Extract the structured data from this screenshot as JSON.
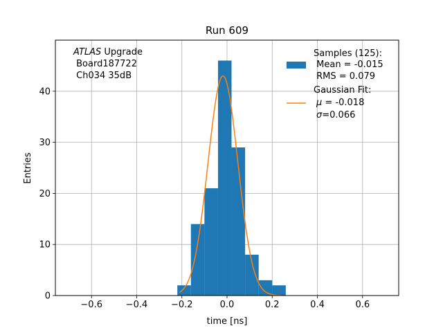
{
  "chart_data": {
    "type": "bar",
    "title": "Run 609",
    "xlabel": "time [ns]",
    "ylabel": "Entries",
    "xlim": [
      -0.76,
      0.76
    ],
    "ylim": [
      0,
      50
    ],
    "grid": true,
    "xticks": [
      -0.6,
      -0.4,
      -0.2,
      0.0,
      0.2,
      0.4,
      0.6
    ],
    "xtick_labels": [
      "−0.6",
      "−0.4",
      "−0.2",
      "0.0",
      "0.2",
      "0.4",
      "0.6"
    ],
    "yticks": [
      0,
      10,
      20,
      30,
      40
    ],
    "ytick_labels": [
      "0",
      "10",
      "20",
      "30",
      "40"
    ],
    "histogram": {
      "name": "Samples (125):",
      "color": "#1f77b4",
      "bin_edges": [
        -0.22,
        -0.16,
        -0.1,
        -0.04,
        0.02,
        0.08,
        0.14,
        0.2,
        0.26
      ],
      "counts": [
        2,
        14,
        21,
        46,
        29,
        8,
        3,
        2
      ]
    },
    "fit": {
      "name": "Gaussian Fit:",
      "color": "#ff7f0e",
      "amplitude": 43,
      "mu": -0.018,
      "sigma": 0.066,
      "x_range": [
        -0.21,
        0.24
      ]
    },
    "legend": {
      "placement": "top-right",
      "samples_title": "Samples (125):",
      "samples_mean": " Mean = -0.015",
      "samples_rms": " RMS = 0.079",
      "fit_title": "Gaussian Fit:",
      "fit_mu_symbol": "μ",
      "fit_mu_value": " = -0.018",
      "fit_sigma_symbol": "σ",
      "fit_sigma_value": "=0.066"
    },
    "annotation": {
      "italic": "ATLAS",
      "rest": " Upgrade",
      "line2": " Board187722",
      "line3": " Ch034 35dB"
    }
  }
}
